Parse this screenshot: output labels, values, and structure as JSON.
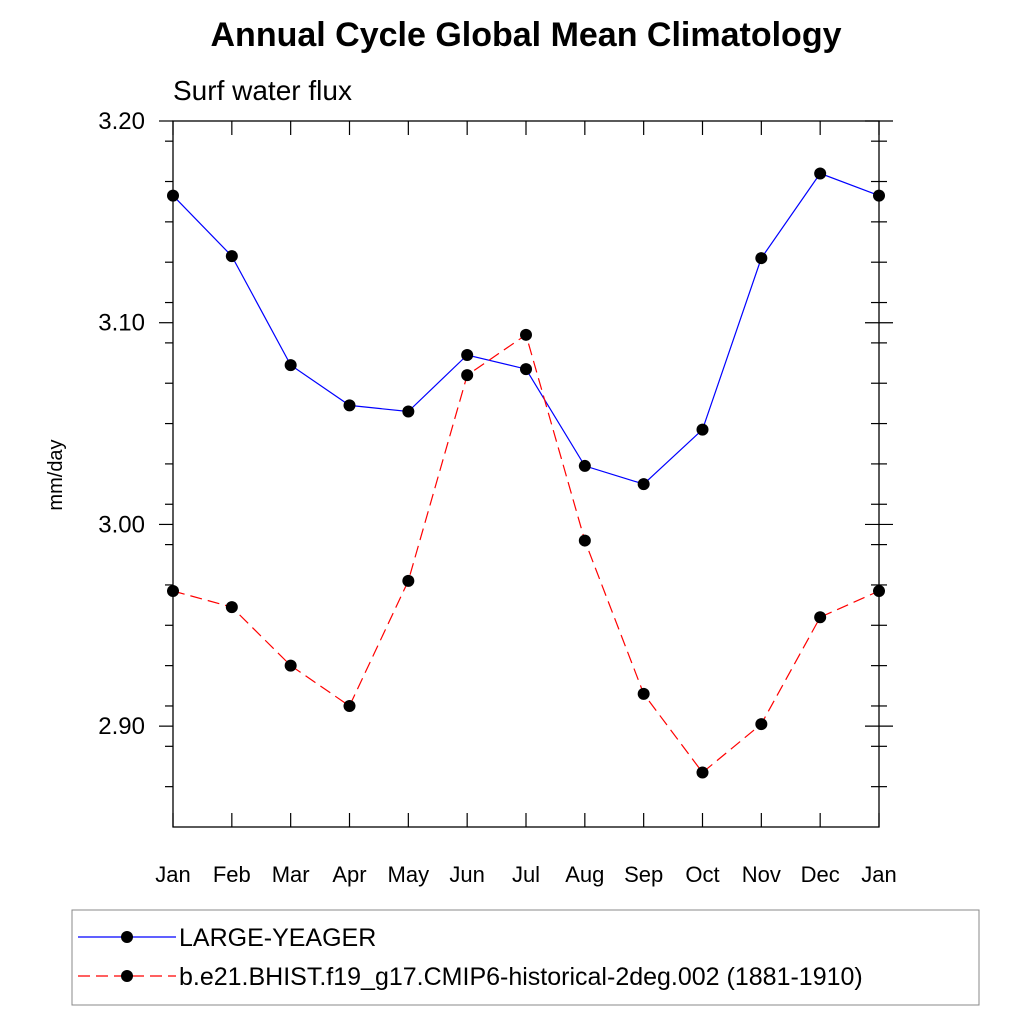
{
  "chart_data": {
    "type": "line",
    "title": "Annual Cycle Global Mean Climatology",
    "subtitle": "Surf water flux",
    "xlabel": "",
    "ylabel": "mm/day",
    "categories": [
      "Jan",
      "Feb",
      "Mar",
      "Apr",
      "May",
      "Jun",
      "Jul",
      "Aug",
      "Sep",
      "Oct",
      "Nov",
      "Dec",
      "Jan"
    ],
    "ylim": [
      2.85,
      3.2
    ],
    "yticks": [
      2.9,
      3.0,
      3.1,
      3.2
    ],
    "ytick_labels": [
      "2.90",
      "3.00",
      "3.10",
      "3.20"
    ],
    "grid": false,
    "legend_position": "bottom",
    "series": [
      {
        "name": "LARGE-YEAGER",
        "color": "#0000ff",
        "line_style": "solid",
        "marker": "filled-circle",
        "values": [
          3.163,
          3.133,
          3.079,
          3.059,
          3.056,
          3.084,
          3.077,
          3.029,
          3.02,
          3.047,
          3.132,
          3.174,
          3.163
        ]
      },
      {
        "name": "b.e21.BHIST.f19_g17.CMIP6-historical-2deg.002 (1881-1910)",
        "color": "#ff0000",
        "line_style": "dashed",
        "marker": "filled-circle",
        "values": [
          2.967,
          2.959,
          2.93,
          2.91,
          2.972,
          3.074,
          3.094,
          2.992,
          2.916,
          2.877,
          2.901,
          2.954,
          2.967
        ]
      }
    ]
  }
}
